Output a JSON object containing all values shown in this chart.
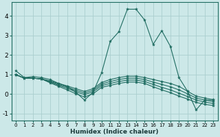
{
  "xlabel": "Humidex (Indice chaleur)",
  "background_color": "#cce8e8",
  "line_color": "#1e6b60",
  "grid_color": "#aacece",
  "xlim": [
    -0.5,
    23.5
  ],
  "ylim": [
    -1.35,
    4.7
  ],
  "lines": [
    {
      "x": [
        0,
        1,
        2,
        3,
        4,
        5,
        6,
        7,
        8,
        9,
        10,
        11,
        12,
        13,
        14,
        15,
        16,
        17,
        18,
        19,
        20,
        21,
        22,
        23
      ],
      "y": [
        1.2,
        0.85,
        0.9,
        0.85,
        0.75,
        0.55,
        0.4,
        0.1,
        -0.3,
        0.1,
        1.1,
        2.7,
        3.2,
        4.35,
        4.35,
        3.8,
        2.55,
        3.25,
        2.45,
        0.85,
        0.15,
        -0.8,
        -0.3,
        -0.3
      ]
    },
    {
      "x": [
        0,
        1,
        2,
        3,
        4,
        5,
        6,
        7,
        8,
        9,
        10,
        11,
        12,
        13,
        14,
        15,
        16,
        17,
        18,
        19,
        20,
        21,
        22,
        23
      ],
      "y": [
        1.0,
        0.82,
        0.82,
        0.78,
        0.68,
        0.55,
        0.42,
        0.28,
        0.14,
        0.28,
        0.6,
        0.75,
        0.85,
        0.92,
        0.92,
        0.85,
        0.75,
        0.65,
        0.55,
        0.4,
        0.15,
        -0.1,
        -0.2,
        -0.28
      ]
    },
    {
      "x": [
        0,
        1,
        2,
        3,
        4,
        5,
        6,
        7,
        8,
        9,
        10,
        11,
        12,
        13,
        14,
        15,
        16,
        17,
        18,
        19,
        20,
        21,
        22,
        23
      ],
      "y": [
        1.0,
        0.82,
        0.82,
        0.78,
        0.65,
        0.5,
        0.36,
        0.2,
        0.06,
        0.2,
        0.52,
        0.65,
        0.75,
        0.82,
        0.82,
        0.75,
        0.62,
        0.5,
        0.38,
        0.22,
        0.02,
        -0.2,
        -0.3,
        -0.38
      ]
    },
    {
      "x": [
        0,
        1,
        2,
        3,
        4,
        5,
        6,
        7,
        8,
        9,
        10,
        11,
        12,
        13,
        14,
        15,
        16,
        17,
        18,
        19,
        20,
        21,
        22,
        23
      ],
      "y": [
        1.0,
        0.82,
        0.82,
        0.78,
        0.62,
        0.45,
        0.3,
        0.12,
        -0.02,
        0.12,
        0.44,
        0.55,
        0.65,
        0.72,
        0.72,
        0.65,
        0.5,
        0.35,
        0.22,
        0.05,
        -0.12,
        -0.3,
        -0.4,
        -0.48
      ]
    },
    {
      "x": [
        0,
        1,
        2,
        3,
        4,
        5,
        6,
        7,
        8,
        9,
        10,
        11,
        12,
        13,
        14,
        15,
        16,
        17,
        18,
        19,
        20,
        21,
        22,
        23
      ],
      "y": [
        1.0,
        0.82,
        0.82,
        0.78,
        0.58,
        0.4,
        0.22,
        0.02,
        -0.14,
        0.02,
        0.35,
        0.45,
        0.55,
        0.62,
        0.62,
        0.55,
        0.38,
        0.22,
        0.08,
        -0.1,
        -0.25,
        -0.42,
        -0.52,
        -0.58
      ]
    }
  ],
  "xticks": [
    0,
    1,
    2,
    3,
    4,
    5,
    6,
    7,
    8,
    9,
    10,
    11,
    12,
    13,
    14,
    15,
    16,
    17,
    18,
    19,
    20,
    21,
    22,
    23
  ],
  "yticks": [
    -1,
    0,
    1,
    2,
    3,
    4
  ]
}
